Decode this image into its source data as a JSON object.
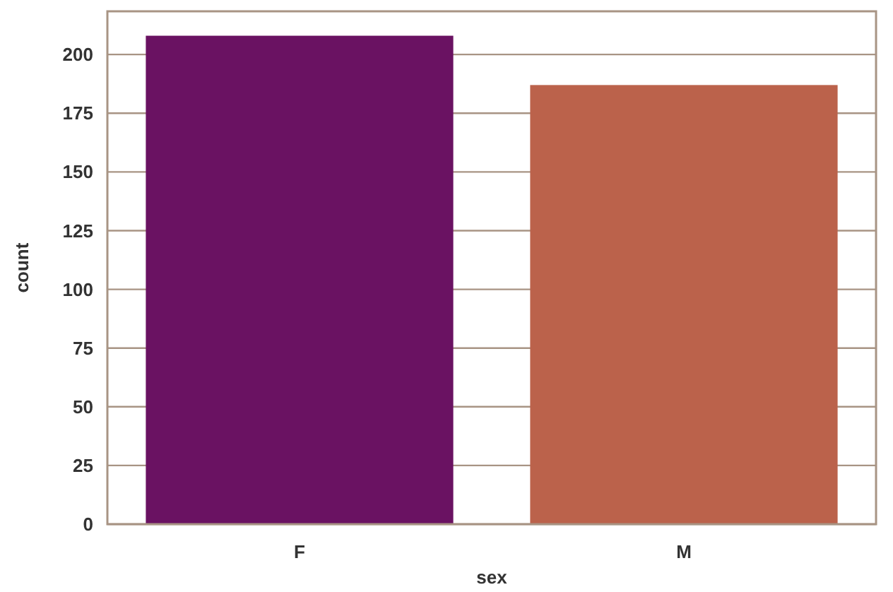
{
  "chart_data": {
    "type": "bar",
    "xlabel": "sex",
    "ylabel": "count",
    "categories": [
      "F",
      "M"
    ],
    "values": [
      208,
      187
    ],
    "colors": [
      "#6a1262",
      "#bb624b"
    ],
    "ylim": [
      0,
      218.4
    ],
    "yticks": [
      0,
      25,
      50,
      75,
      100,
      125,
      150,
      175,
      200
    ],
    "grid": "y"
  }
}
